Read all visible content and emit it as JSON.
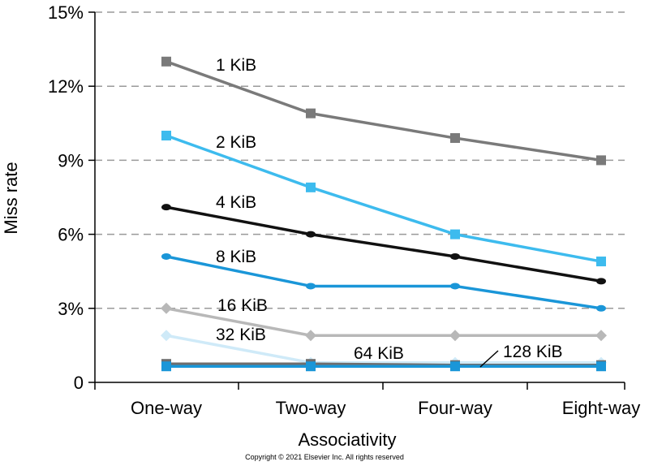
{
  "chart_data": {
    "type": "line",
    "title": "",
    "xlabel": "Associativity",
    "ylabel": "Miss rate",
    "categories": [
      "One-way",
      "Two-way",
      "Four-way",
      "Eight-way"
    ],
    "ylim": [
      0,
      15
    ],
    "yticks": [
      0,
      3,
      6,
      9,
      12,
      15
    ],
    "ytick_labels": [
      "0",
      "3%",
      "6%",
      "9%",
      "12%",
      "15%"
    ],
    "grid": "horizontal dashed",
    "series": [
      {
        "name": "1 KiB",
        "values": [
          13.0,
          10.9,
          9.9,
          9.0
        ],
        "color": "#7a7a7a",
        "marker": "square"
      },
      {
        "name": "2 KiB",
        "values": [
          10.0,
          7.9,
          6.0,
          4.9
        ],
        "color": "#3dbbee",
        "marker": "square"
      },
      {
        "name": "4 KiB",
        "values": [
          7.1,
          6.0,
          5.1,
          4.1
        ],
        "color": "#111111",
        "marker": "circle"
      },
      {
        "name": "8 KiB",
        "values": [
          5.1,
          3.9,
          3.9,
          3.0
        ],
        "color": "#1a96d8",
        "marker": "circle"
      },
      {
        "name": "16 KiB",
        "values": [
          3.0,
          1.9,
          1.9,
          1.9
        ],
        "color": "#b8b8b8",
        "marker": "diamond"
      },
      {
        "name": "32 KiB",
        "values": [
          1.9,
          0.8,
          0.8,
          0.8
        ],
        "color": "#cfeaf8",
        "marker": "diamond"
      },
      {
        "name": "64 KiB",
        "values": [
          0.75,
          0.75,
          0.7,
          0.7
        ],
        "color": "#6e6e6e",
        "marker": "square"
      },
      {
        "name": "128 KiB",
        "values": [
          0.65,
          0.65,
          0.65,
          0.65
        ],
        "color": "#1a96d8",
        "marker": "square"
      }
    ]
  },
  "copyright": "Copyright © 2021 Elsevier Inc. All rights reserved"
}
